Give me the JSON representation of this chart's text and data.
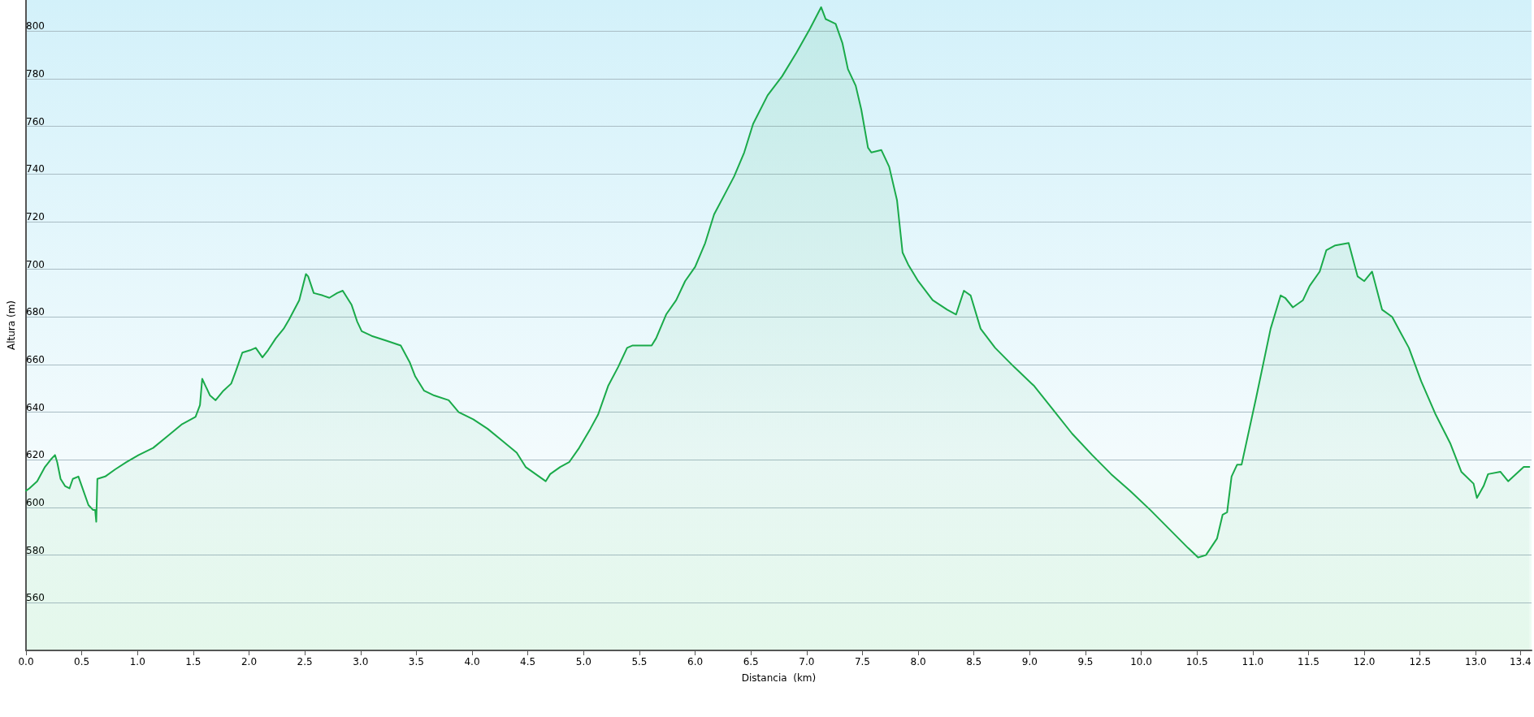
{
  "chart_data": {
    "type": "area",
    "xlabel": "Distancia  (km)",
    "ylabel": "Altura (m)",
    "xlim": [
      0,
      13.5
    ],
    "xticks": [
      {
        "value": 0,
        "label": "0.0"
      },
      {
        "value": 0.5,
        "label": "0.5"
      },
      {
        "value": 1,
        "label": "1.0"
      },
      {
        "value": 1.5,
        "label": "1.5"
      },
      {
        "value": 2,
        "label": "2.0"
      },
      {
        "value": 2.5,
        "label": "2.5"
      },
      {
        "value": 3,
        "label": "3.0"
      },
      {
        "value": 3.5,
        "label": "3.5"
      },
      {
        "value": 4,
        "label": "4.0"
      },
      {
        "value": 4.5,
        "label": "4.5"
      },
      {
        "value": 5,
        "label": "5.0"
      },
      {
        "value": 5.5,
        "label": "5.5"
      },
      {
        "value": 6,
        "label": "6.0"
      },
      {
        "value": 6.5,
        "label": "6.5"
      },
      {
        "value": 7,
        "label": "7.0"
      },
      {
        "value": 7.5,
        "label": "7.5"
      },
      {
        "value": 8,
        "label": "8.0"
      },
      {
        "value": 8.5,
        "label": "8.5"
      },
      {
        "value": 9,
        "label": "9.0"
      },
      {
        "value": 9.5,
        "label": "9.5"
      },
      {
        "value": 10,
        "label": "10.0"
      },
      {
        "value": 10.5,
        "label": "10.5"
      },
      {
        "value": 11,
        "label": "11.0"
      },
      {
        "value": 11.5,
        "label": "11.5"
      },
      {
        "value": 12,
        "label": "12.0"
      },
      {
        "value": 12.5,
        "label": "12.5"
      },
      {
        "value": 13,
        "label": "13.0"
      },
      13.4
    ],
    "ylim": [
      540,
      813
    ],
    "yticks": [
      560,
      580,
      600,
      620,
      640,
      660,
      680,
      700,
      720,
      740,
      760,
      780,
      800
    ],
    "grid": "y",
    "marker": "none",
    "line_style": "solid",
    "series": [
      {
        "color": "#1aaa4a",
        "x": [
          0,
          0.03,
          0.1,
          0.17,
          0.22,
          0.26,
          0.28,
          0.31,
          0.35,
          0.39,
          0.42,
          0.47,
          0.5,
          0.56,
          0.6,
          0.62,
          0.63,
          0.64,
          0.71,
          0.8,
          0.9,
          1.01,
          1.14,
          1.27,
          1.4,
          1.52,
          1.56,
          1.58,
          1.61,
          1.65,
          1.7,
          1.77,
          1.84,
          1.88,
          1.94,
          2.01,
          2.06,
          2.12,
          2.17,
          2.24,
          2.31,
          2.36,
          2.45,
          2.51,
          2.53,
          2.58,
          2.66,
          2.72,
          2.79,
          2.84,
          2.92,
          2.97,
          3.01,
          3.1,
          3.23,
          3.36,
          3.44,
          3.49,
          3.57,
          3.66,
          3.79,
          3.88,
          4.01,
          4.14,
          4.27,
          4.4,
          4.48,
          4.57,
          4.66,
          4.7,
          4.79,
          4.87,
          4.96,
          5.06,
          5.13,
          5.22,
          5.31,
          5.39,
          5.44,
          5.61,
          5.65,
          5.74,
          5.83,
          5.91,
          6,
          6.09,
          6.17,
          6.26,
          6.35,
          6.44,
          6.52,
          6.65,
          6.78,
          6.91,
          7.03,
          7.13,
          7.17,
          7.26,
          7.32,
          7.37,
          7.44,
          7.49,
          7.55,
          7.58,
          7.67,
          7.74,
          7.81,
          7.86,
          7.91,
          8,
          8.13,
          8.26,
          8.34,
          8.41,
          8.47,
          8.56,
          8.69,
          8.86,
          9.04,
          9.21,
          9.38,
          9.56,
          9.73,
          9.9,
          10.08,
          10.25,
          10.42,
          10.51,
          10.58,
          10.68,
          10.73,
          10.77,
          10.81,
          10.86,
          10.9,
          11.03,
          11.16,
          11.25,
          11.29,
          11.36,
          11.45,
          11.51,
          11.6,
          11.66,
          11.74,
          11.86,
          11.94,
          12,
          12.07,
          12.16,
          12.25,
          12.33,
          12.4,
          12.51,
          12.64,
          12.77,
          12.87,
          12.98,
          13.01,
          13.07,
          13.11,
          13.22,
          13.29,
          13.43,
          13.48
        ],
        "values": [
          607,
          608,
          611,
          617,
          620,
          622,
          619,
          612,
          609,
          608,
          612,
          613,
          609,
          601,
          599,
          599,
          594,
          612,
          613,
          616,
          619,
          622,
          625,
          630,
          635,
          638,
          643,
          654,
          651,
          647,
          645,
          649,
          652,
          657,
          665,
          666,
          667,
          663,
          666,
          671,
          675,
          679,
          687,
          698,
          697,
          690,
          689,
          688,
          690,
          691,
          685,
          678,
          674,
          672,
          670,
          668,
          661,
          655,
          649,
          647,
          645,
          640,
          637,
          633,
          628,
          623,
          617,
          614,
          611,
          614,
          617,
          619,
          625,
          633,
          639,
          651,
          659,
          667,
          668,
          668,
          671,
          681,
          687,
          695,
          701,
          711,
          723,
          731,
          739,
          749,
          761,
          773,
          781,
          791,
          801,
          810,
          805,
          803,
          795,
          784,
          777,
          767,
          751,
          749,
          750,
          743,
          729,
          707,
          702,
          695,
          687,
          683,
          681,
          691,
          689,
          675,
          667,
          659,
          651,
          641,
          631,
          622,
          614,
          607,
          599,
          591,
          583,
          579,
          580,
          587,
          597,
          598,
          613,
          618,
          618,
          646,
          675,
          689,
          688,
          684,
          687,
          693,
          699,
          708,
          710,
          711,
          697,
          695,
          699,
          683,
          680,
          673,
          667,
          653,
          639,
          627,
          615,
          610,
          604,
          609,
          614,
          615,
          611,
          617,
          617
        ]
      }
    ]
  }
}
